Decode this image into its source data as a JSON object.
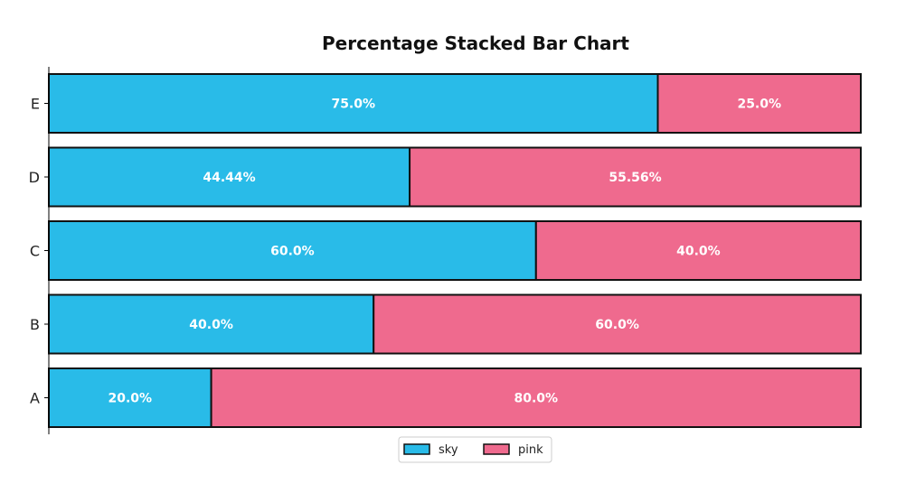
{
  "chart_data": {
    "type": "bar",
    "orientation": "horizontal",
    "stacked": true,
    "percent": true,
    "title": "Percentage Stacked Bar Chart",
    "xlabel": "",
    "ylabel": "",
    "xlim": [
      0,
      100
    ],
    "categories": [
      "A",
      "B",
      "C",
      "D",
      "E"
    ],
    "series": [
      {
        "name": "sky",
        "color": "#29BBE8",
        "values": [
          20.0,
          40.0,
          60.0,
          44.44,
          75.0
        ],
        "labels": [
          "20.0%",
          "40.0%",
          "60.0%",
          "44.44%",
          "75.0%"
        ]
      },
      {
        "name": "pink",
        "color": "#EF6A8E",
        "values": [
          80.0,
          60.0,
          40.0,
          55.56,
          25.0
        ],
        "labels": [
          "80.0%",
          "60.0%",
          "40.0%",
          "55.56%",
          "25.0%"
        ]
      }
    ],
    "grid": false,
    "legend_position": "bottom-center"
  }
}
